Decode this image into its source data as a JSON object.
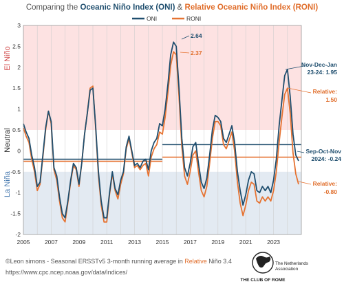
{
  "title": {
    "part1": "Comparing the ",
    "oni_label": "Oceanic Niño Index (ONI)",
    "part2": " & ",
    "roni_label": "Relative Oceanic Niño Index (RONI)"
  },
  "colors": {
    "oni": "#1f4e6e",
    "roni": "#e67332",
    "el_nino_band": "#fde2e2",
    "la_nina_band": "#e3eaf2",
    "el_nino_text": "#d24a4a",
    "la_nina_text": "#4a7bb0"
  },
  "regions": {
    "el_nino": "El Niño",
    "neutral": "Neutral",
    "la_nina": "La Niña"
  },
  "chart_data": {
    "type": "line",
    "title": "Comparing the Oceanic Niño Index (ONI) & Relative Oceanic Niño Index (RONI)",
    "xlabel": "",
    "ylabel": "",
    "xlim": [
      2005,
      2025
    ],
    "ylim": [
      -2,
      3
    ],
    "x_ticks": [
      "2005",
      "2007",
      "2009",
      "2011",
      "2013",
      "2015",
      "2017",
      "2019",
      "2021",
      "2023"
    ],
    "y_ticks": [
      "3",
      "2.5",
      "2",
      "1.5",
      "1",
      "0.5",
      "0",
      "-0.5",
      "-1",
      "-1.5",
      "-2"
    ],
    "legend": [
      "ONI",
      "RONI"
    ],
    "legend_position": "top-center",
    "grid": "vertical",
    "series": [
      {
        "name": "ONI",
        "x": [
          2005.0,
          2005.2,
          2005.4,
          2005.6,
          2005.8,
          2006.0,
          2006.2,
          2006.4,
          2006.6,
          2006.8,
          2007.0,
          2007.2,
          2007.4,
          2007.6,
          2007.8,
          2008.0,
          2008.2,
          2008.4,
          2008.6,
          2008.8,
          2009.0,
          2009.2,
          2009.4,
          2009.6,
          2009.8,
          2010.0,
          2010.2,
          2010.4,
          2010.6,
          2010.8,
          2011.0,
          2011.2,
          2011.4,
          2011.6,
          2011.8,
          2012.0,
          2012.2,
          2012.4,
          2012.6,
          2012.8,
          2013.0,
          2013.2,
          2013.4,
          2013.6,
          2013.8,
          2014.0,
          2014.2,
          2014.4,
          2014.6,
          2014.8,
          2015.0,
          2015.2,
          2015.4,
          2015.6,
          2015.8,
          2016.0,
          2016.2,
          2016.4,
          2016.6,
          2016.8,
          2017.0,
          2017.2,
          2017.4,
          2017.6,
          2017.8,
          2018.0,
          2018.2,
          2018.4,
          2018.6,
          2018.8,
          2019.0,
          2019.2,
          2019.4,
          2019.6,
          2019.8,
          2020.0,
          2020.2,
          2020.4,
          2020.6,
          2020.8,
          2021.0,
          2021.2,
          2021.4,
          2021.6,
          2021.8,
          2022.0,
          2022.2,
          2022.4,
          2022.6,
          2022.8,
          2023.0,
          2023.2,
          2023.4,
          2023.6,
          2023.8,
          2024.0,
          2024.2,
          2024.4,
          2024.6,
          2024.8
        ],
        "values": [
          0.65,
          0.45,
          0.3,
          -0.1,
          -0.4,
          -0.85,
          -0.75,
          -0.1,
          0.55,
          0.95,
          0.7,
          -0.4,
          -0.6,
          -1.1,
          -1.5,
          -1.6,
          -1.2,
          -0.7,
          -0.3,
          -0.4,
          -0.8,
          -0.3,
          0.4,
          0.9,
          1.45,
          1.5,
          0.6,
          -0.5,
          -1.2,
          -1.6,
          -1.6,
          -1.0,
          -0.5,
          -0.9,
          -1.05,
          -0.7,
          -0.5,
          0.1,
          0.35,
          0.0,
          -0.35,
          -0.3,
          -0.4,
          -0.25,
          -0.2,
          -0.45,
          0.0,
          0.2,
          0.3,
          0.65,
          0.6,
          1.0,
          1.6,
          2.3,
          2.6,
          2.5,
          1.5,
          0.3,
          -0.4,
          -0.6,
          -0.3,
          0.1,
          0.2,
          -0.3,
          -0.75,
          -0.9,
          -0.65,
          -0.1,
          0.5,
          0.85,
          0.8,
          0.7,
          0.3,
          0.2,
          0.4,
          0.6,
          0.2,
          -0.5,
          -0.95,
          -1.3,
          -1.05,
          -0.7,
          -0.5,
          -0.55,
          -0.95,
          -1.0,
          -0.85,
          -0.95,
          -0.85,
          -1.0,
          -0.7,
          -0.2,
          0.6,
          1.2,
          1.8,
          1.95,
          1.3,
          0.4,
          -0.1,
          -0.24
        ]
      },
      {
        "name": "RONI",
        "x": [
          2005.0,
          2005.2,
          2005.4,
          2005.6,
          2005.8,
          2006.0,
          2006.2,
          2006.4,
          2006.6,
          2006.8,
          2007.0,
          2007.2,
          2007.4,
          2007.6,
          2007.8,
          2008.0,
          2008.2,
          2008.4,
          2008.6,
          2008.8,
          2009.0,
          2009.2,
          2009.4,
          2009.6,
          2009.8,
          2010.0,
          2010.2,
          2010.4,
          2010.6,
          2010.8,
          2011.0,
          2011.2,
          2011.4,
          2011.6,
          2011.8,
          2012.0,
          2012.2,
          2012.4,
          2012.6,
          2012.8,
          2013.0,
          2013.2,
          2013.4,
          2013.6,
          2013.8,
          2014.0,
          2014.2,
          2014.4,
          2014.6,
          2014.8,
          2015.0,
          2015.2,
          2015.4,
          2015.6,
          2015.8,
          2016.0,
          2016.2,
          2016.4,
          2016.6,
          2016.8,
          2017.0,
          2017.2,
          2017.4,
          2017.6,
          2017.8,
          2018.0,
          2018.2,
          2018.4,
          2018.6,
          2018.8,
          2019.0,
          2019.2,
          2019.4,
          2019.6,
          2019.8,
          2020.0,
          2020.2,
          2020.4,
          2020.6,
          2020.8,
          2021.0,
          2021.2,
          2021.4,
          2021.6,
          2021.8,
          2022.0,
          2022.2,
          2022.4,
          2022.6,
          2022.8,
          2023.0,
          2023.2,
          2023.4,
          2023.6,
          2023.8,
          2024.0,
          2024.2,
          2024.4,
          2024.6,
          2024.8
        ],
        "values": [
          0.55,
          0.35,
          0.2,
          -0.2,
          -0.5,
          -0.95,
          -0.8,
          -0.15,
          0.5,
          0.95,
          0.65,
          -0.45,
          -0.7,
          -1.2,
          -1.6,
          -1.7,
          -1.25,
          -0.75,
          -0.35,
          -0.45,
          -0.85,
          -0.3,
          0.4,
          0.9,
          1.5,
          1.55,
          0.55,
          -0.6,
          -1.3,
          -1.7,
          -1.7,
          -1.05,
          -0.55,
          -0.95,
          -1.15,
          -0.8,
          -0.55,
          0.05,
          0.3,
          -0.05,
          -0.4,
          -0.35,
          -0.45,
          -0.35,
          -0.3,
          -0.6,
          -0.15,
          0.05,
          0.15,
          0.45,
          0.4,
          0.8,
          1.4,
          2.05,
          2.37,
          2.3,
          1.3,
          0.1,
          -0.6,
          -0.8,
          -0.5,
          -0.1,
          0.0,
          -0.5,
          -0.95,
          -1.1,
          -0.85,
          -0.3,
          0.3,
          0.7,
          0.7,
          0.6,
          0.15,
          0.05,
          0.25,
          0.45,
          0.0,
          -0.75,
          -1.25,
          -1.55,
          -1.3,
          -0.95,
          -0.75,
          -0.8,
          -1.2,
          -1.25,
          -1.1,
          -1.2,
          -1.1,
          -1.2,
          -0.95,
          -0.5,
          0.2,
          0.8,
          1.35,
          1.5,
          0.9,
          -0.05,
          -0.55,
          -0.8
        ]
      }
    ],
    "mean_lines": [
      {
        "series": "ONI",
        "segments": [
          {
            "x": [
              2005,
              2015
            ],
            "value": -0.2
          },
          {
            "x": [
              2015,
              2025
            ],
            "value": 0.15
          }
        ]
      },
      {
        "series": "RONI",
        "segments": [
          {
            "x": [
              2005,
              2015
            ],
            "value": -0.25
          },
          {
            "x": [
              2015,
              2025
            ],
            "value": -0.15
          }
        ]
      }
    ],
    "annotations": {
      "oni_peak": "2.64",
      "roni_peak": "2.37",
      "oni_recent_peak_1": "Nov-Dec-Jan",
      "oni_recent_peak_2": "23-24: 1.95",
      "roni_recent_peak_1": "Relative:",
      "roni_recent_peak_2": "1.50",
      "oni_latest_1": "Sep-Oct-Nov",
      "oni_latest_2": "2024: -0.24",
      "roni_latest_1": "Relative:",
      "roni_latest_2": "-0.80"
    }
  },
  "footer": {
    "credit_prefix": "©Leon simons - Seasonal ERSSTv5 3-month running average in ",
    "credit_relative": "Relative",
    "credit_suffix": " Niño 3.4",
    "url": "https://www.cpc.ncep.noaa.gov/data/indices/",
    "logo_text": "THE CLUB OF ROME",
    "logo_sub1": "The Netherlands",
    "logo_sub2": "Association"
  }
}
